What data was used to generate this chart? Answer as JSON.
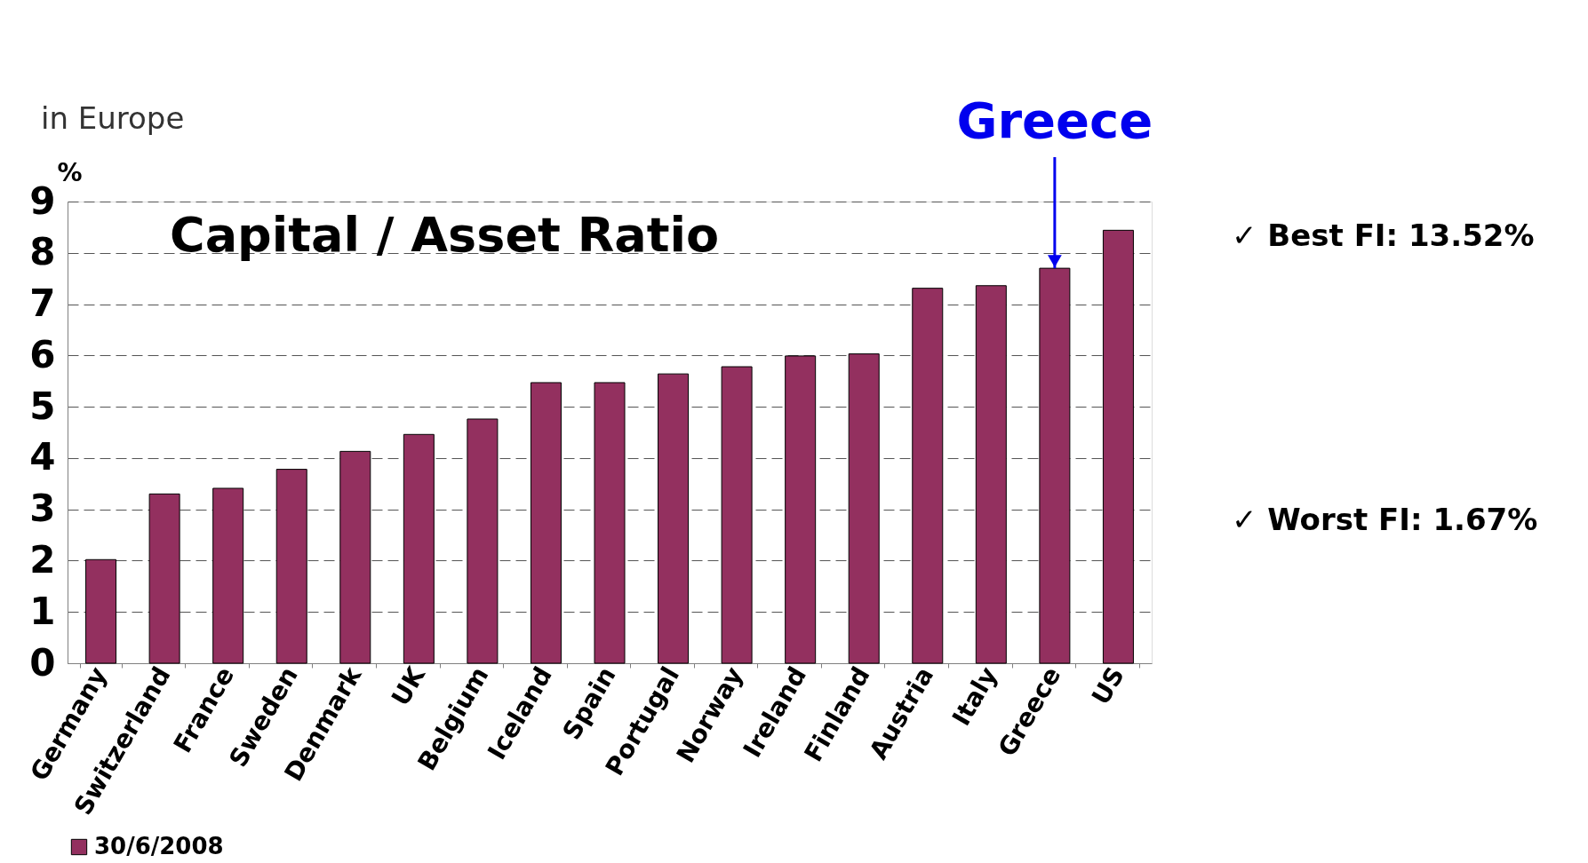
{
  "chart_data": {
    "type": "bar",
    "title": "Capital / Asset Ratio",
    "subtitle": "in Europe",
    "ylabel": "%",
    "categories": [
      "Germany",
      "Switzerland",
      "France",
      "Sweden",
      "Denmark",
      "UK",
      "Belgium",
      "Iceland",
      "Spain",
      "Portugal",
      "Norway",
      "Ireland",
      "Finland",
      "Austria",
      "Italy",
      "Greece",
      "US"
    ],
    "series": [
      {
        "name": "30/6/2008",
        "color": "#93305f",
        "values": [
          2.02,
          3.3,
          3.41,
          3.78,
          4.13,
          4.46,
          4.76,
          5.47,
          5.47,
          5.64,
          5.78,
          5.99,
          6.03,
          7.31,
          7.36,
          7.7,
          8.44
        ]
      }
    ],
    "ylim": [
      0,
      9
    ],
    "yticks": [
      0,
      1,
      2,
      3,
      4,
      5,
      6,
      7,
      8,
      9
    ],
    "grid": "y",
    "legend": "bottom",
    "annotations": [
      {
        "text": "Greece",
        "x": "Greece",
        "y": 7.7
      },
      "✓ Best FI: 13.52%",
      "✓ Worst FI: 1.67%"
    ]
  }
}
